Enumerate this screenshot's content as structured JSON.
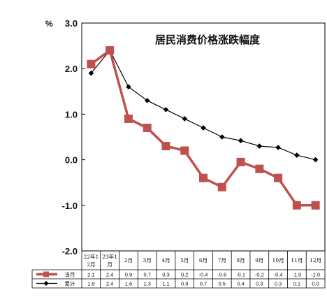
{
  "chart_data": {
    "type": "line",
    "title": "居民消费价格涨跌幅度",
    "ylabel": "%",
    "ylim": [
      -2.0,
      3.0
    ],
    "yticks": [
      "3.0",
      "2.0",
      "1.0",
      "0.0",
      "-1.0",
      "-2.0"
    ],
    "categories": [
      [
        "22年1",
        "2月"
      ],
      [
        "23年1",
        "月"
      ],
      [
        "2月"
      ],
      [
        "3月"
      ],
      [
        "4月"
      ],
      [
        "5月"
      ],
      [
        "6月"
      ],
      [
        "7月"
      ],
      [
        "8月"
      ],
      [
        "9月"
      ],
      [
        "10月"
      ],
      [
        "11月"
      ],
      [
        "12月"
      ]
    ],
    "series": [
      {
        "name": "当月",
        "color": "#c0504d",
        "marker": "square",
        "values": [
          2.1,
          2.4,
          0.9,
          0.7,
          0.3,
          0.2,
          -0.4,
          -0.6,
          -0.1,
          -0.2,
          -0.4,
          -1.0,
          -1.0
        ],
        "labels": [
          "2.1",
          "2.4",
          "0.9",
          "0.7",
          "0.3",
          "0.2",
          "-0.4",
          "-0.6",
          "-0.1",
          "-0.2",
          "-0.4",
          "-1.0",
          "-1.0"
        ]
      },
      {
        "name": "累计",
        "color": "#000000",
        "marker": "diamond",
        "values": [
          1.9,
          2.4,
          1.6,
          1.3,
          1.1,
          0.9,
          0.7,
          0.5,
          0.4,
          0.3,
          0.3,
          0.1,
          0.0
        ],
        "labels": [
          "1.9",
          "2.4",
          "1.6",
          "1.3",
          "1.1",
          "0.9",
          "0.7",
          "0.5",
          "0.4",
          "0.3",
          "0.3",
          "0.1",
          "0.0"
        ]
      }
    ],
    "line_points": {
      "当月": [
        2.1,
        2.4,
        0.9,
        0.7,
        0.3,
        0.2,
        -0.4,
        -0.6,
        -0.05,
        -0.2,
        -0.4,
        -1.0,
        -1.0
      ],
      "累计": [
        1.9,
        2.4,
        1.6,
        1.3,
        1.1,
        0.9,
        0.7,
        0.5,
        0.42,
        0.3,
        0.27,
        0.1,
        0.0
      ]
    }
  }
}
